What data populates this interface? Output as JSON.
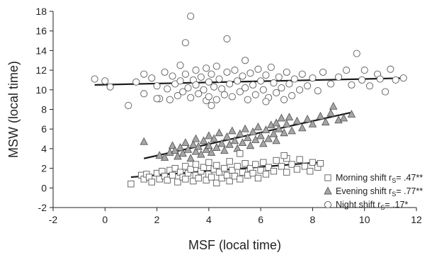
{
  "chart_data": {
    "type": "scatter",
    "title": "",
    "xlabel": "MSF (local time)",
    "ylabel": "MSW (local time)",
    "xlim": [
      -2,
      12
    ],
    "ylim": [
      -2,
      18
    ],
    "xticks": [
      -2,
      0,
      2,
      4,
      6,
      8,
      10,
      12
    ],
    "yticks": [
      -2,
      0,
      2,
      4,
      6,
      8,
      10,
      12,
      14,
      16,
      18
    ],
    "xtick_labels": [
      "-2",
      "0",
      "2",
      "4",
      "6",
      "8",
      "10",
      "12"
    ],
    "ytick_labels": [
      "-2",
      "0",
      "2",
      "4",
      "6",
      "8",
      "10",
      "12",
      "14",
      "16",
      "18"
    ],
    "legend_position": "bottom-right",
    "series": [
      {
        "name": "Morning shift",
        "stat_prefix": "r",
        "stat_sub": "S",
        "stat_value": "= .47**",
        "marker": "square",
        "fill": "#ffffff",
        "trend": {
          "x": [
            1.0,
            8.2
          ],
          "y": [
            1.1,
            2.6
          ]
        },
        "points": [
          [
            1.0,
            0.4
          ],
          [
            1.4,
            1.3
          ],
          [
            1.5,
            0.9
          ],
          [
            1.6,
            1.4
          ],
          [
            1.7,
            1.1
          ],
          [
            1.8,
            0.6
          ],
          [
            2.0,
            1.5
          ],
          [
            2.1,
            0.9
          ],
          [
            2.2,
            1.7
          ],
          [
            2.3,
            1.2
          ],
          [
            2.4,
            0.8
          ],
          [
            2.5,
            1.8
          ],
          [
            2.6,
            1.3
          ],
          [
            2.7,
            2.0
          ],
          [
            2.8,
            0.6
          ],
          [
            2.9,
            1.6
          ],
          [
            3.0,
            1.1
          ],
          [
            3.1,
            2.2
          ],
          [
            3.1,
            0.9
          ],
          [
            3.2,
            1.5
          ],
          [
            3.3,
            1.9
          ],
          [
            3.4,
            0.7
          ],
          [
            3.5,
            1.3
          ],
          [
            3.5,
            2.4
          ],
          [
            3.6,
            1.0
          ],
          [
            3.7,
            1.7
          ],
          [
            3.8,
            2.1
          ],
          [
            3.9,
            0.8
          ],
          [
            4.0,
            1.4
          ],
          [
            4.0,
            2.6
          ],
          [
            4.1,
            1.1
          ],
          [
            4.2,
            1.9
          ],
          [
            4.3,
            0.5
          ],
          [
            4.3,
            2.3
          ],
          [
            4.4,
            1.6
          ],
          [
            4.5,
            1.0
          ],
          [
            4.6,
            2.0
          ],
          [
            4.7,
            1.3
          ],
          [
            4.8,
            2.7
          ],
          [
            4.8,
            0.7
          ],
          [
            4.9,
            1.8
          ],
          [
            5.0,
            1.2
          ],
          [
            5.1,
            2.2
          ],
          [
            5.2,
            0.9
          ],
          [
            5.3,
            1.6
          ],
          [
            5.4,
            2.5
          ],
          [
            5.5,
            1.3
          ],
          [
            5.6,
            2.0
          ],
          [
            5.7,
            1.5
          ],
          [
            5.8,
            2.4
          ],
          [
            5.9,
            1.0
          ],
          [
            6.0,
            1.8
          ],
          [
            6.1,
            2.6
          ],
          [
            6.2,
            1.4
          ],
          [
            6.3,
            2.1
          ],
          [
            6.5,
            1.7
          ],
          [
            6.6,
            2.8
          ],
          [
            6.8,
            2.2
          ],
          [
            7.0,
            1.6
          ],
          [
            7.0,
            3.0
          ],
          [
            7.2,
            2.4
          ],
          [
            7.4,
            1.9
          ],
          [
            7.5,
            2.9
          ],
          [
            7.7,
            2.2
          ],
          [
            7.9,
            1.7
          ],
          [
            8.0,
            2.6
          ],
          [
            8.2,
            2.1
          ],
          [
            8.3,
            2.5
          ],
          [
            6.9,
            3.3
          ],
          [
            5.2,
            3.5
          ]
        ]
      },
      {
        "name": "Evening shift",
        "stat_prefix": "r",
        "stat_sub": "S",
        "stat_value": "= .77**",
        "marker": "triangle",
        "fill": "#a6a6a6",
        "trend": {
          "x": [
            1.5,
            9.5
          ],
          "y": [
            3.0,
            7.7
          ]
        },
        "points": [
          [
            1.5,
            4.7
          ],
          [
            2.1,
            3.3
          ],
          [
            2.3,
            3.1
          ],
          [
            2.5,
            3.6
          ],
          [
            2.6,
            4.3
          ],
          [
            2.7,
            3.8
          ],
          [
            2.8,
            3.2
          ],
          [
            2.9,
            4.1
          ],
          [
            3.0,
            3.5
          ],
          [
            3.1,
            4.6
          ],
          [
            3.2,
            3.9
          ],
          [
            3.3,
            3.0
          ],
          [
            3.4,
            4.4
          ],
          [
            3.5,
            3.7
          ],
          [
            3.5,
            5.0
          ],
          [
            3.6,
            4.2
          ],
          [
            3.7,
            3.4
          ],
          [
            3.8,
            4.8
          ],
          [
            3.9,
            3.9
          ],
          [
            4.0,
            5.3
          ],
          [
            4.0,
            4.3
          ],
          [
            4.1,
            3.6
          ],
          [
            4.2,
            5.0
          ],
          [
            4.3,
            4.1
          ],
          [
            4.4,
            5.6
          ],
          [
            4.5,
            4.5
          ],
          [
            4.6,
            3.8
          ],
          [
            4.7,
            5.2
          ],
          [
            4.8,
            4.4
          ],
          [
            4.9,
            5.8
          ],
          [
            5.0,
            4.8
          ],
          [
            5.1,
            4.0
          ],
          [
            5.2,
            5.5
          ],
          [
            5.3,
            4.6
          ],
          [
            5.4,
            6.0
          ],
          [
            5.5,
            5.1
          ],
          [
            5.6,
            4.3
          ],
          [
            5.7,
            5.7
          ],
          [
            5.8,
            4.9
          ],
          [
            5.9,
            6.2
          ],
          [
            6.0,
            5.3
          ],
          [
            6.1,
            4.5
          ],
          [
            6.2,
            5.9
          ],
          [
            6.3,
            5.0
          ],
          [
            6.4,
            6.4
          ],
          [
            6.5,
            5.5
          ],
          [
            6.6,
            4.8
          ],
          [
            6.7,
            6.0
          ],
          [
            6.8,
            7.1
          ],
          [
            6.9,
            5.6
          ],
          [
            7.0,
            6.5
          ],
          [
            7.1,
            7.2
          ],
          [
            7.2,
            5.8
          ],
          [
            7.4,
            6.8
          ],
          [
            7.6,
            6.1
          ],
          [
            7.8,
            7.0
          ],
          [
            8.0,
            6.5
          ],
          [
            8.3,
            7.3
          ],
          [
            8.5,
            6.7
          ],
          [
            8.7,
            7.6
          ],
          [
            9.0,
            6.9
          ],
          [
            9.2,
            7.1
          ],
          [
            9.5,
            7.5
          ],
          [
            8.8,
            8.3
          ],
          [
            6.6,
            6.6
          ]
        ]
      },
      {
        "name": "Night shift",
        "stat_prefix": "r",
        "stat_sub": "S",
        "stat_value": "= .17*",
        "marker": "circle",
        "fill": "#ffffff",
        "trend": {
          "x": [
            -0.4,
            11.6
          ],
          "y": [
            10.5,
            11.2
          ]
        },
        "points": [
          [
            -0.4,
            11.1
          ],
          [
            0.2,
            10.3
          ],
          [
            0.9,
            8.4
          ],
          [
            1.2,
            10.8
          ],
          [
            1.5,
            9.6
          ],
          [
            1.8,
            11.2
          ],
          [
            2.0,
            10.4
          ],
          [
            2.1,
            9.1
          ],
          [
            2.3,
            11.8
          ],
          [
            2.4,
            10.1
          ],
          [
            2.5,
            9.0
          ],
          [
            2.6,
            11.4
          ],
          [
            2.7,
            10.6
          ],
          [
            2.8,
            9.4
          ],
          [
            2.9,
            12.5
          ],
          [
            2.9,
            10.9
          ],
          [
            3.0,
            9.8
          ],
          [
            3.1,
            11.6
          ],
          [
            3.2,
            10.2
          ],
          [
            3.3,
            9.2
          ],
          [
            3.3,
            17.5
          ],
          [
            3.4,
            11.0
          ],
          [
            3.5,
            10.5
          ],
          [
            3.5,
            12.0
          ],
          [
            3.6,
            9.6
          ],
          [
            3.7,
            11.3
          ],
          [
            3.8,
            10.0
          ],
          [
            3.9,
            8.9
          ],
          [
            3.9,
            12.2
          ],
          [
            4.0,
            10.8
          ],
          [
            4.0,
            9.3
          ],
          [
            4.1,
            11.6
          ],
          [
            4.2,
            10.3
          ],
          [
            4.3,
            9.0
          ],
          [
            4.3,
            12.4
          ],
          [
            4.4,
            11.1
          ],
          [
            4.5,
            10.1
          ],
          [
            4.6,
            9.5
          ],
          [
            4.7,
            11.8
          ],
          [
            4.7,
            15.2
          ],
          [
            4.8,
            10.6
          ],
          [
            4.9,
            9.3
          ],
          [
            5.0,
            12.0
          ],
          [
            5.1,
            10.9
          ],
          [
            5.2,
            9.8
          ],
          [
            5.3,
            11.4
          ],
          [
            5.4,
            10.2
          ],
          [
            5.4,
            13.0
          ],
          [
            5.5,
            9.0
          ],
          [
            5.6,
            11.7
          ],
          [
            5.7,
            10.5
          ],
          [
            5.8,
            9.5
          ],
          [
            5.9,
            12.1
          ],
          [
            6.0,
            10.9
          ],
          [
            6.1,
            10.0
          ],
          [
            6.2,
            11.5
          ],
          [
            6.3,
            9.2
          ],
          [
            6.4,
            12.3
          ],
          [
            6.5,
            10.7
          ],
          [
            6.6,
            9.7
          ],
          [
            6.7,
            11.3
          ],
          [
            6.8,
            10.2
          ],
          [
            6.9,
            9.0
          ],
          [
            7.0,
            11.8
          ],
          [
            7.1,
            10.6
          ],
          [
            7.2,
            9.4
          ],
          [
            7.3,
            11.1
          ],
          [
            7.5,
            10.0
          ],
          [
            7.6,
            11.6
          ],
          [
            7.8,
            10.4
          ],
          [
            8.0,
            11.2
          ],
          [
            8.2,
            9.9
          ],
          [
            8.4,
            11.8
          ],
          [
            8.7,
            10.6
          ],
          [
            9.0,
            11.3
          ],
          [
            9.3,
            12.0
          ],
          [
            9.5,
            10.5
          ],
          [
            9.7,
            13.7
          ],
          [
            9.9,
            11.0
          ],
          [
            10.2,
            10.4
          ],
          [
            10.5,
            11.6
          ],
          [
            10.8,
            9.8
          ],
          [
            11.0,
            12.1
          ],
          [
            11.2,
            11.0
          ],
          [
            11.5,
            11.2
          ],
          [
            3.1,
            14.8
          ],
          [
            4.1,
            8.4
          ],
          [
            6.2,
            8.8
          ],
          [
            2.0,
            9.1
          ],
          [
            1.5,
            11.6
          ],
          [
            0.0,
            10.9
          ],
          [
            10.0,
            12.0
          ],
          [
            10.6,
            11.1
          ]
        ]
      }
    ]
  }
}
